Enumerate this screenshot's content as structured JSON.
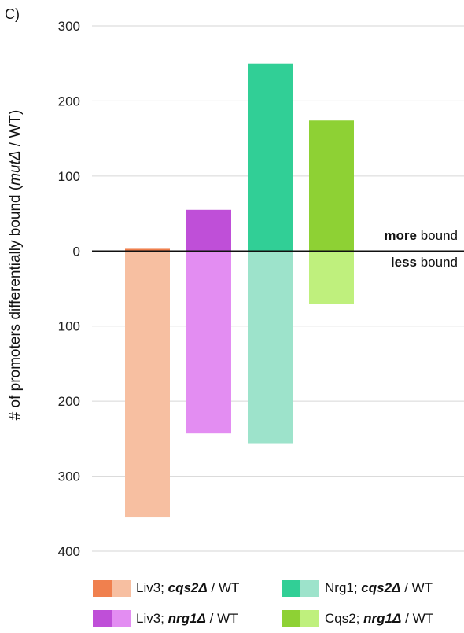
{
  "panel_label": "C)",
  "chart_data": {
    "type": "bar",
    "layout": "diverging-stacked",
    "ylabel_prefix": "# of promoters differentially bound (",
    "ylabel_italic": "mutΔ",
    "ylabel_suffix": " / WT)",
    "yticks": [
      {
        "value": 300,
        "label": "300"
      },
      {
        "value": 200,
        "label": "200"
      },
      {
        "value": 100,
        "label": "100"
      },
      {
        "value": 0,
        "label": "0"
      },
      {
        "value": -100,
        "label": "100"
      },
      {
        "value": -200,
        "label": "200"
      },
      {
        "value": -300,
        "label": "300"
      },
      {
        "value": -400,
        "label": "400"
      }
    ],
    "ylim": [
      -400,
      300
    ],
    "grid": true,
    "annotations": {
      "more_bold": "more",
      "more_rest": " bound",
      "less_bold": "less",
      "less_rest": " bound"
    },
    "series": [
      {
        "name_prefix": "Liv3; ",
        "name_italic": "cqs2Δ",
        "name_suffix": " / WT",
        "more": 3,
        "less": 355,
        "color_more": "#f0804e",
        "color_less": "#f7bfa1"
      },
      {
        "name_prefix": "Liv3; ",
        "name_italic": "nrg1Δ",
        "name_suffix": " / WT",
        "more": 55,
        "less": 243,
        "color_more": "#bf4fd8",
        "color_less": "#e38df2"
      },
      {
        "name_prefix": "Nrg1; ",
        "name_italic": "cqs2Δ",
        "name_suffix": " / WT",
        "more": 250,
        "less": 257,
        "color_more": "#31cf96",
        "color_less": "#9de3cb"
      },
      {
        "name_prefix": "Cqs2; ",
        "name_italic": "nrg1Δ",
        "name_suffix": " / WT",
        "more": 174,
        "less": 70,
        "color_more": "#8ed134",
        "color_less": "#bff07d"
      }
    ]
  }
}
